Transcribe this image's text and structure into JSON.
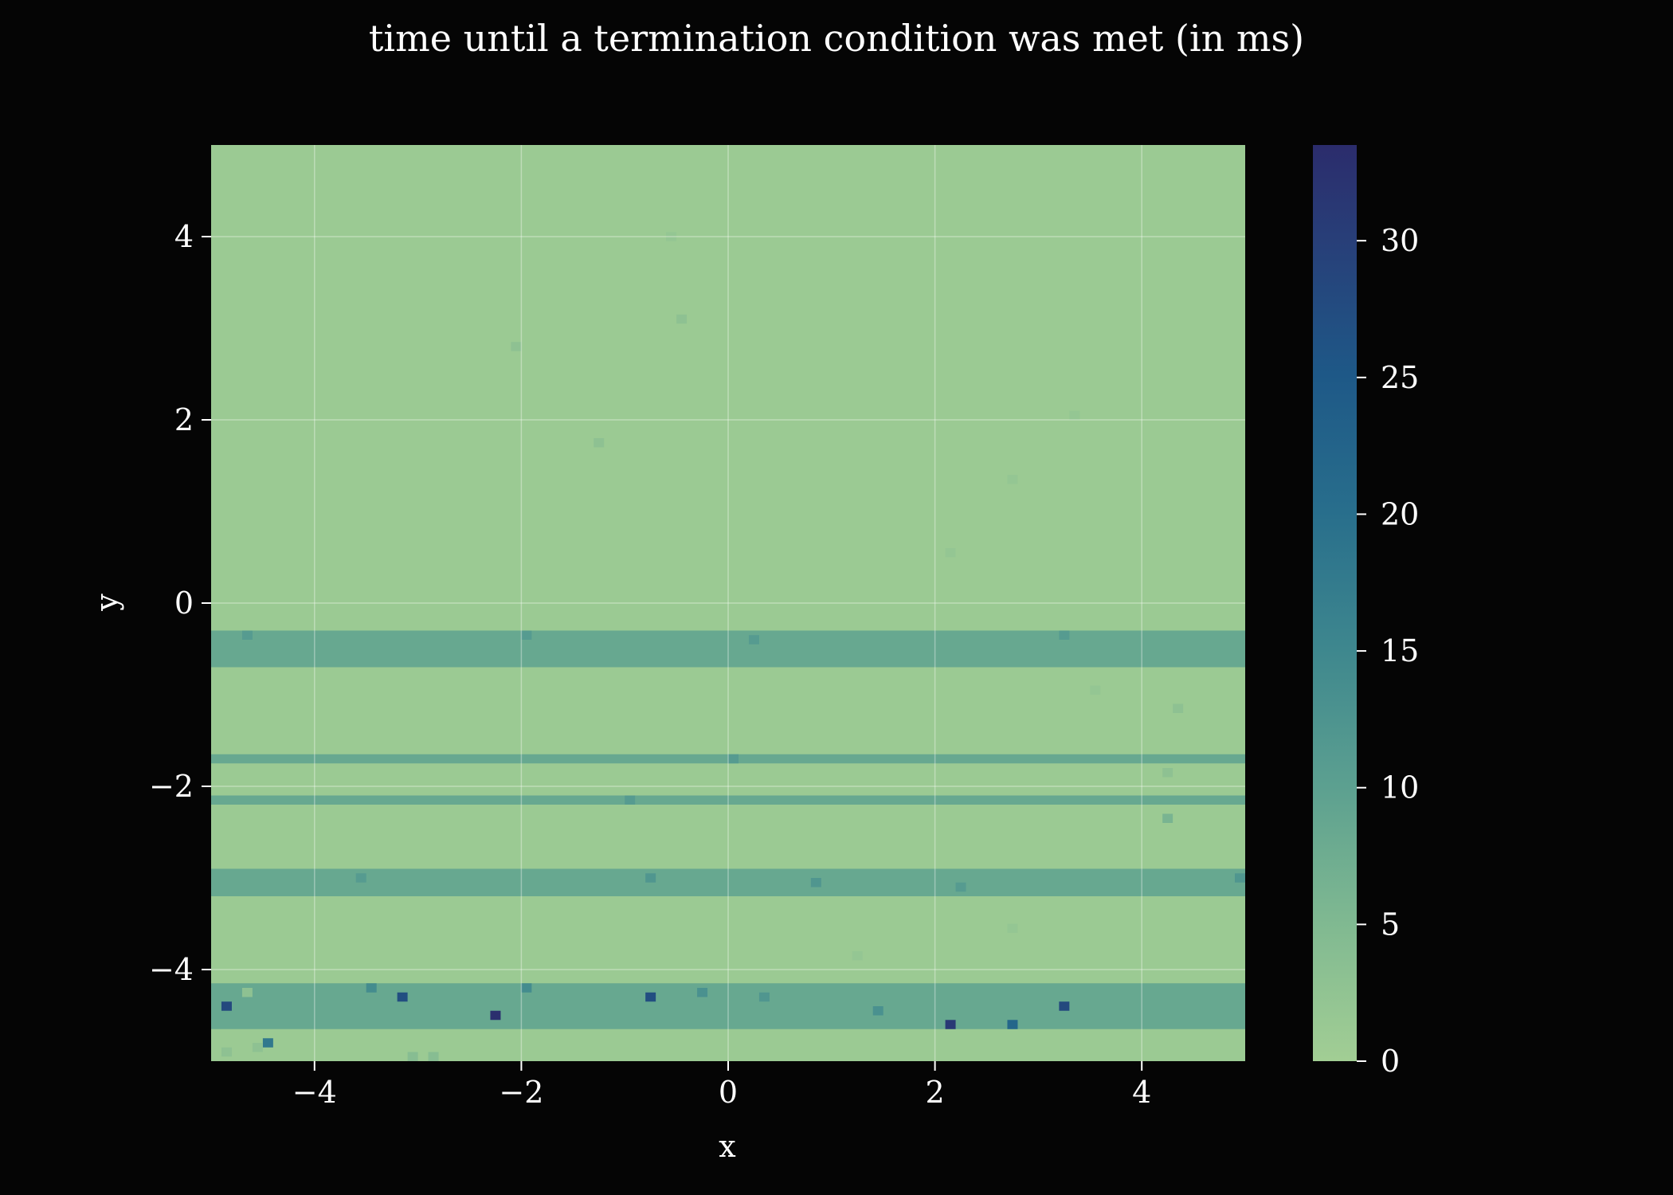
{
  "chart_data": {
    "type": "heatmap",
    "title": "time until a termination condition was met (in ms)",
    "xlabel": "x",
    "ylabel": "y",
    "xlim": [
      -5,
      5
    ],
    "ylim": [
      -5,
      5
    ],
    "x_ticks": [
      -4,
      -2,
      0,
      2,
      4
    ],
    "y_ticks": [
      -4,
      -2,
      0,
      2,
      4
    ],
    "x_tick_labels": [
      "−4",
      "−2",
      "0",
      "2",
      "4"
    ],
    "y_tick_labels": [
      "−4",
      "−2",
      "0",
      "2",
      "4"
    ],
    "grid": true,
    "colormap": "crest",
    "colorbar": {
      "range": [
        0,
        33.5
      ],
      "ticks": [
        0,
        5,
        10,
        15,
        20,
        25,
        30
      ],
      "tick_labels": [
        "0",
        "5",
        "10",
        "15",
        "20",
        "25",
        "30"
      ]
    },
    "grid_resolution": 100,
    "background_value": 1.0,
    "bands": [
      {
        "y_min": -0.7,
        "y_max": -0.3,
        "value": 8.5
      },
      {
        "y_min": -1.75,
        "y_max": -1.65,
        "value": 8.5
      },
      {
        "y_min": -2.2,
        "y_max": -2.1,
        "value": 8.5
      },
      {
        "y_min": -3.2,
        "y_max": -2.9,
        "value": 8.5
      },
      {
        "y_min": -4.65,
        "y_max": -4.15,
        "value": 8.5
      }
    ],
    "outliers": [
      {
        "x": -4.85,
        "y": -4.4,
        "value": 28
      },
      {
        "x": -3.15,
        "y": -4.3,
        "value": 27
      },
      {
        "x": -2.25,
        "y": -4.5,
        "value": 33
      },
      {
        "x": -0.75,
        "y": -4.3,
        "value": 27
      },
      {
        "x": 2.15,
        "y": -4.6,
        "value": 31
      },
      {
        "x": 2.75,
        "y": -4.6,
        "value": 22
      },
      {
        "x": 3.25,
        "y": -4.4,
        "value": 28
      },
      {
        "x": -4.45,
        "y": -4.8,
        "value": 18
      },
      {
        "x": -2.05,
        "y": 2.8,
        "value": 3
      },
      {
        "x": -1.25,
        "y": 1.75,
        "value": 3
      },
      {
        "x": -0.45,
        "y": 3.1,
        "value": 3
      },
      {
        "x": -0.55,
        "y": 4.0,
        "value": 2
      },
      {
        "x": 2.15,
        "y": 0.55,
        "value": 2
      },
      {
        "x": 2.75,
        "y": 1.35,
        "value": 2
      },
      {
        "x": 3.35,
        "y": 2.05,
        "value": 2
      },
      {
        "x": 3.55,
        "y": -0.95,
        "value": 2
      },
      {
        "x": 4.25,
        "y": -1.85,
        "value": 3
      },
      {
        "x": 2.75,
        "y": -3.55,
        "value": 2
      },
      {
        "x": 1.25,
        "y": -3.85,
        "value": 2
      },
      {
        "x": 4.35,
        "y": -1.15,
        "value": 3
      },
      {
        "x": 4.25,
        "y": -2.35,
        "value": 6
      },
      {
        "x": -4.65,
        "y": -4.25,
        "value": 3
      },
      {
        "x": -3.45,
        "y": -4.2,
        "value": 14
      },
      {
        "x": -1.95,
        "y": -4.2,
        "value": 14
      },
      {
        "x": -0.25,
        "y": -4.25,
        "value": 13
      },
      {
        "x": 0.35,
        "y": -4.3,
        "value": 12
      },
      {
        "x": 1.45,
        "y": -4.45,
        "value": 13
      },
      {
        "x": -3.55,
        "y": -3.0,
        "value": 11
      },
      {
        "x": -0.75,
        "y": -3.0,
        "value": 12
      },
      {
        "x": 0.85,
        "y": -3.05,
        "value": 12
      },
      {
        "x": 2.25,
        "y": -3.1,
        "value": 11
      },
      {
        "x": 4.95,
        "y": -3.0,
        "value": 12
      },
      {
        "x": -4.65,
        "y": -0.35,
        "value": 11
      },
      {
        "x": -1.95,
        "y": -0.35,
        "value": 11
      },
      {
        "x": 0.25,
        "y": -0.4,
        "value": 11
      },
      {
        "x": 3.25,
        "y": -0.35,
        "value": 11
      },
      {
        "x": 0.05,
        "y": -1.7,
        "value": 11
      },
      {
        "x": -0.95,
        "y": -2.15,
        "value": 11
      },
      {
        "x": -4.85,
        "y": -4.9,
        "value": 3
      },
      {
        "x": -4.55,
        "y": -4.85,
        "value": 3
      },
      {
        "x": -3.05,
        "y": -4.95,
        "value": 4
      },
      {
        "x": -2.85,
        "y": -4.95,
        "value": 4
      }
    ]
  }
}
